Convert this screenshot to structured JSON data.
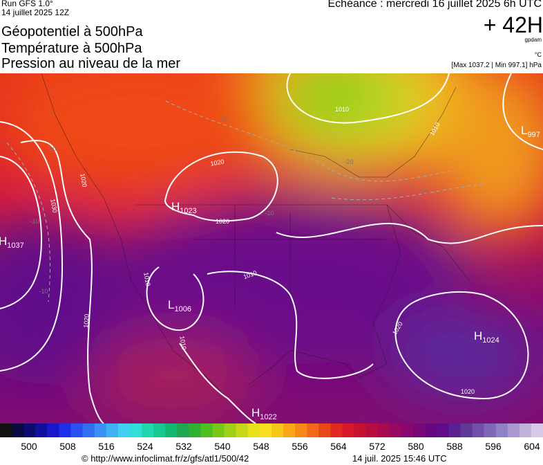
{
  "header": {
    "run": "Run GFS 1.0°",
    "run_date": "14 juillet 2025 12Z",
    "titles": [
      "Géopotentiel à 500hPa",
      "Température à 500hPa",
      "Pression au niveau de la mer"
    ],
    "valid_time": "Echéance : mercredi 16 juillet 2025 6h UTC",
    "lead": "+ 42H",
    "unit_geo": "gpdam",
    "unit_temp": "°C",
    "pressure_range": "[Max 1037.2 | Min 997.1] hPa"
  },
  "map": {
    "centers": [
      {
        "letter": "H",
        "value": "1023"
      },
      {
        "letter": "H",
        "value": "1037"
      },
      {
        "letter": "L",
        "value": "1006"
      },
      {
        "letter": "H",
        "value": "1024"
      },
      {
        "letter": "H",
        "value": "1022"
      },
      {
        "letter": "L",
        "value": "997"
      }
    ],
    "isobar_labels": [
      "1020",
      "1020",
      "1010",
      "1010",
      "1010",
      "1020",
      "1030",
      "1020",
      "1010",
      "1020",
      "1020",
      "1010"
    ],
    "temperature_labels": [
      "-20",
      "-20",
      "-10",
      "-10",
      "-10",
      "-10",
      "-10"
    ]
  },
  "colorbar": {
    "ticks": [
      "500",
      "508",
      "516",
      "524",
      "532",
      "540",
      "548",
      "556",
      "564",
      "572",
      "580",
      "588",
      "596",
      "604"
    ]
  },
  "footer": {
    "source": "© http://www.infoclimat.fr/z/gfs/atl1/500/42",
    "generated": "14 juil. 2025 15:46 UTC"
  }
}
